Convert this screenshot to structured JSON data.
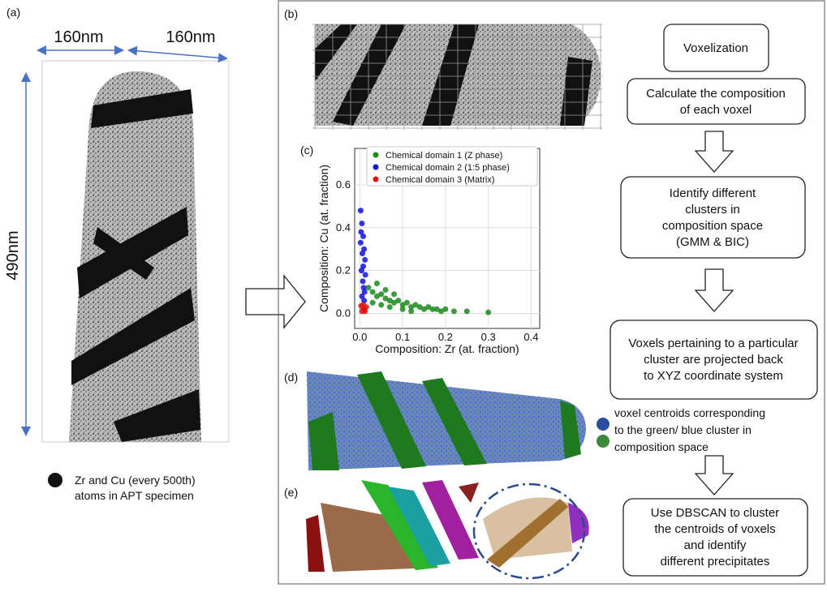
{
  "panel_labels": [
    "(a)",
    "(b)",
    "(c)",
    "(d)",
    "(e)"
  ],
  "specimen": {
    "width_label": "160nm",
    "depth_label": "160nm",
    "height_label": "490nm",
    "legend_lines": [
      "Zr and Cu (every 500th)",
      "atoms in APT specimen"
    ]
  },
  "flow": [
    {
      "lines": [
        "Voxelization"
      ]
    },
    {
      "lines": [
        "Calculate the composition",
        "of each voxel"
      ]
    },
    {
      "lines": [
        "Identify different",
        "clusters in",
        "composition space",
        "(GMM & BIC)"
      ]
    },
    {
      "lines": [
        "Voxels pertaining to a particular",
        "cluster are projected back",
        "to XYZ coordinate system"
      ]
    },
    {
      "lines": [
        "Use DBSCAN to cluster",
        "the centroids of voxels",
        "and identify",
        "different precipitates"
      ]
    }
  ],
  "voxel_note": {
    "lines": [
      "voxel centroids corresponding",
      "to the green/ blue cluster in",
      "composition space"
    ]
  },
  "chart_data": {
    "type": "scatter",
    "xlabel": "Composition: Zr (at. fraction)",
    "ylabel": "Composition: Cu (at. fraction)",
    "xlim": [
      -0.012,
      0.42
    ],
    "ylim": [
      -0.07,
      0.77
    ],
    "xticks": [
      {
        "value": 0,
        "label": "0.0"
      },
      {
        "value": 0.1,
        "label": "0.1"
      },
      {
        "value": 0.2,
        "label": "0.2"
      },
      {
        "value": 0.3,
        "label": "0.3"
      },
      {
        "value": 0.4,
        "label": "0.4"
      }
    ],
    "yticks": [
      {
        "value": 0,
        "label": "0.0"
      },
      {
        "value": 0.2,
        "label": "0.2"
      },
      {
        "value": 0.4,
        "label": "0.4"
      },
      {
        "value": 0.6,
        "label": "0.6"
      }
    ],
    "grid": true,
    "legend": "upper right",
    "series": [
      {
        "name": "Chemical domain 1 (Z phase)",
        "color": "#1a8a1a",
        "x": [
          0.02,
          0.03,
          0.04,
          0.05,
          0.06,
          0.07,
          0.08,
          0.09,
          0.1,
          0.11,
          0.12,
          0.13,
          0.14,
          0.15,
          0.16,
          0.17,
          0.18,
          0.19,
          0.2,
          0.22,
          0.03,
          0.05,
          0.07,
          0.04,
          0.06,
          0.1,
          0.12,
          0.08,
          0.25,
          0.3
        ],
        "y": [
          0.12,
          0.1,
          0.08,
          0.09,
          0.07,
          0.06,
          0.05,
          0.06,
          0.04,
          0.05,
          0.03,
          0.04,
          0.03,
          0.02,
          0.03,
          0.02,
          0.02,
          0.01,
          0.02,
          0.01,
          0.05,
          0.04,
          0.03,
          0.14,
          0.11,
          0.02,
          0.01,
          0.09,
          0.01,
          0.005
        ]
      },
      {
        "name": "Chemical domain 2 (1:5 phase)",
        "color": "#1010e0",
        "x": [
          0.002,
          0.005,
          0.008,
          0.01,
          0.012,
          0.004,
          0.007,
          0.009,
          0.011,
          0.003,
          0.006,
          0.013,
          0.005,
          0.008,
          0.002,
          0.01
        ],
        "y": [
          0.48,
          0.42,
          0.36,
          0.3,
          0.25,
          0.2,
          0.15,
          0.12,
          0.1,
          0.38,
          0.28,
          0.18,
          0.08,
          0.22,
          0.33,
          0.06
        ]
      },
      {
        "name": "Chemical domain 3 (Matrix)",
        "color": "#e01010",
        "x": [
          0.005,
          0.01,
          0.015,
          0.008,
          0.012,
          0.003
        ],
        "y": [
          0.01,
          0.02,
          0.03,
          0.04,
          0.01,
          0.035
        ]
      }
    ]
  }
}
